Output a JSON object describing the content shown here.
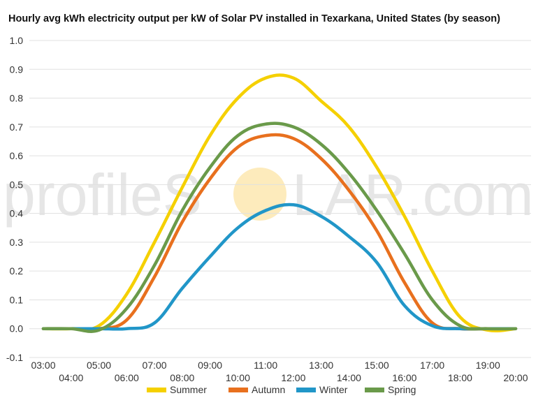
{
  "watermark": {
    "text_left": "profileS",
    "text_right": "LAR.com"
  },
  "chart_data": {
    "type": "line",
    "title": "Hourly avg kWh electricity output per kW of Solar PV installed in Texarkana, United States (by season)",
    "xlabel": "",
    "ylabel": "",
    "ylim": [
      -0.1,
      1.0
    ],
    "y_ticks": [
      "1.0",
      "0.9",
      "0.8",
      "0.7",
      "0.6",
      "0.5",
      "0.4",
      "0.3",
      "0.2",
      "0.1",
      "0.0",
      "-0.1"
    ],
    "categories": [
      "03:00",
      "04:00",
      "05:00",
      "06:00",
      "07:00",
      "08:00",
      "09:00",
      "10:00",
      "11:00",
      "12:00",
      "13:00",
      "14:00",
      "15:00",
      "16:00",
      "17:00",
      "18:00",
      "19:00",
      "20:00"
    ],
    "grid": true,
    "legend": "bottom",
    "series": [
      {
        "name": "Summer",
        "color": "#f5d000",
        "values": [
          0,
          0,
          0.01,
          0.12,
          0.3,
          0.49,
          0.67,
          0.8,
          0.87,
          0.87,
          0.79,
          0.7,
          0.56,
          0.39,
          0.2,
          0.04,
          -0.005,
          0
        ]
      },
      {
        "name": "Autumn",
        "color": "#e8701e",
        "values": [
          0,
          0,
          0,
          0.03,
          0.18,
          0.37,
          0.52,
          0.63,
          0.67,
          0.66,
          0.59,
          0.48,
          0.34,
          0.16,
          0.02,
          0,
          0,
          0
        ]
      },
      {
        "name": "Winter",
        "color": "#2196c8",
        "values": [
          0,
          0,
          0,
          0,
          0.02,
          0.14,
          0.25,
          0.35,
          0.41,
          0.43,
          0.39,
          0.32,
          0.23,
          0.08,
          0.01,
          0,
          0,
          0
        ]
      },
      {
        "name": "Spring",
        "color": "#6a9a4a",
        "values": [
          0,
          0,
          -0.005,
          0.07,
          0.22,
          0.41,
          0.56,
          0.67,
          0.71,
          0.7,
          0.64,
          0.54,
          0.41,
          0.26,
          0.1,
          0.01,
          0,
          0
        ]
      }
    ]
  }
}
